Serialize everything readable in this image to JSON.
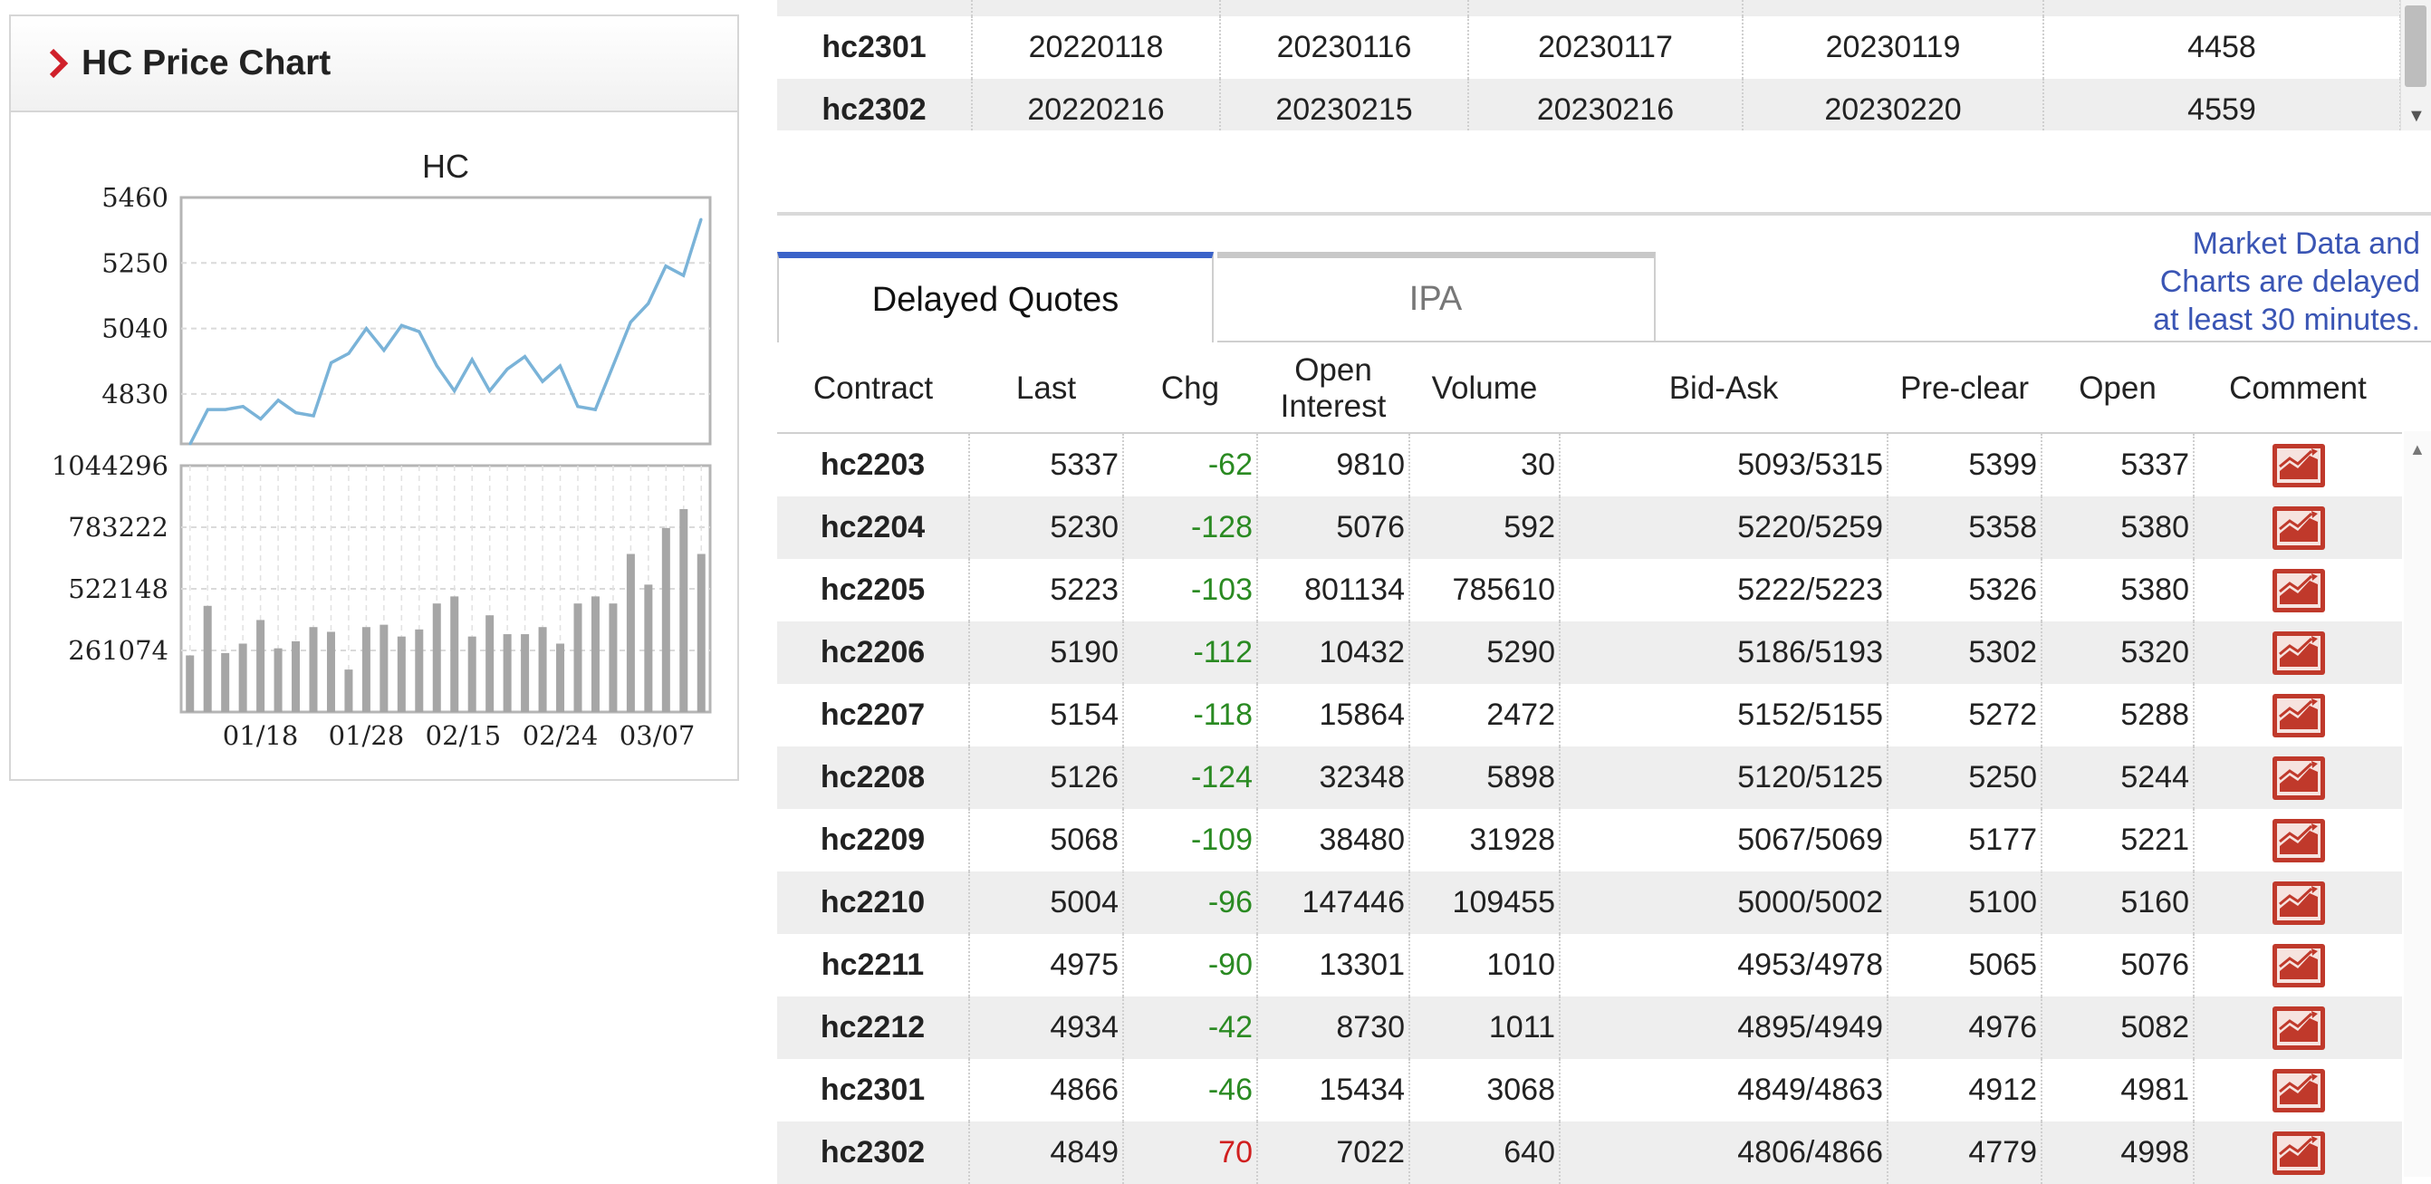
{
  "chart_panel": {
    "title": "HC Price Chart"
  },
  "chart_data": [
    {
      "type": "line",
      "title": "HC",
      "yticks": [
        "5460",
        "5250",
        "5040",
        "4830"
      ],
      "ylim": [
        4670,
        5460
      ],
      "grid": true,
      "values": [
        4670,
        4780,
        4780,
        4790,
        4750,
        4810,
        4770,
        4760,
        4930,
        4960,
        5040,
        4970,
        5050,
        5030,
        4920,
        4840,
        4940,
        4840,
        4910,
        4950,
        4870,
        4920,
        4790,
        4780,
        4920,
        5060,
        5120,
        5240,
        5210,
        5390
      ]
    },
    {
      "type": "bar",
      "yticks": [
        "1044296",
        "783222",
        "522148",
        "261074"
      ],
      "ylim": [
        0,
        1044296
      ],
      "xticks": [
        "01/18",
        "01/28",
        "02/15",
        "02/24",
        "03/07"
      ],
      "grid": true,
      "values": [
        240000,
        450000,
        250000,
        290000,
        390000,
        270000,
        300000,
        360000,
        340000,
        180000,
        360000,
        370000,
        320000,
        350000,
        460000,
        490000,
        320000,
        410000,
        330000,
        330000,
        360000,
        290000,
        460000,
        490000,
        460000,
        670000,
        540000,
        780000,
        860000,
        670000
      ]
    }
  ],
  "upper_table": {
    "rows": [
      {
        "contract": "hc2301",
        "c1": "20220118",
        "c2": "20230116",
        "c3": "20230117",
        "c4": "20230119",
        "c5": "4458"
      },
      {
        "contract": "hc2302",
        "c1": "20220216",
        "c2": "20230215",
        "c3": "20230216",
        "c4": "20230220",
        "c5": "4559"
      }
    ]
  },
  "tabs": {
    "delayed": "Delayed Quotes",
    "ipa": "IPA"
  },
  "notice": {
    "line1": "Market Data and",
    "line2": "Charts are delayed",
    "line3": "at least 30 minutes."
  },
  "quotes": {
    "headers": {
      "contract": "Contract",
      "last": "Last",
      "chg": "Chg",
      "oi_1": "Open",
      "oi_2": "Interest",
      "volume": "Volume",
      "bidask": "Bid-Ask",
      "preclear": "Pre-clear",
      "open": "Open",
      "comment": "Comment"
    },
    "rows": [
      {
        "contract": "hc2203",
        "last": "5337",
        "chg": "-62",
        "oi": "9810",
        "volume": "30",
        "bidask": "5093/5315",
        "preclear": "5399",
        "open": "5337"
      },
      {
        "contract": "hc2204",
        "last": "5230",
        "chg": "-128",
        "oi": "5076",
        "volume": "592",
        "bidask": "5220/5259",
        "preclear": "5358",
        "open": "5380"
      },
      {
        "contract": "hc2205",
        "last": "5223",
        "chg": "-103",
        "oi": "801134",
        "volume": "785610",
        "bidask": "5222/5223",
        "preclear": "5326",
        "open": "5380"
      },
      {
        "contract": "hc2206",
        "last": "5190",
        "chg": "-112",
        "oi": "10432",
        "volume": "5290",
        "bidask": "5186/5193",
        "preclear": "5302",
        "open": "5320"
      },
      {
        "contract": "hc2207",
        "last": "5154",
        "chg": "-118",
        "oi": "15864",
        "volume": "2472",
        "bidask": "5152/5155",
        "preclear": "5272",
        "open": "5288"
      },
      {
        "contract": "hc2208",
        "last": "5126",
        "chg": "-124",
        "oi": "32348",
        "volume": "5898",
        "bidask": "5120/5125",
        "preclear": "5250",
        "open": "5244"
      },
      {
        "contract": "hc2209",
        "last": "5068",
        "chg": "-109",
        "oi": "38480",
        "volume": "31928",
        "bidask": "5067/5069",
        "preclear": "5177",
        "open": "5221"
      },
      {
        "contract": "hc2210",
        "last": "5004",
        "chg": "-96",
        "oi": "147446",
        "volume": "109455",
        "bidask": "5000/5002",
        "preclear": "5100",
        "open": "5160"
      },
      {
        "contract": "hc2211",
        "last": "4975",
        "chg": "-90",
        "oi": "13301",
        "volume": "1010",
        "bidask": "4953/4978",
        "preclear": "5065",
        "open": "5076"
      },
      {
        "contract": "hc2212",
        "last": "4934",
        "chg": "-42",
        "oi": "8730",
        "volume": "1011",
        "bidask": "4895/4949",
        "preclear": "4976",
        "open": "5082"
      },
      {
        "contract": "hc2301",
        "last": "4866",
        "chg": "-46",
        "oi": "15434",
        "volume": "3068",
        "bidask": "4849/4863",
        "preclear": "4912",
        "open": "4981"
      },
      {
        "contract": "hc2302",
        "last": "4849",
        "chg": "70",
        "oi": "7022",
        "volume": "640",
        "bidask": "4806/4866",
        "preclear": "4779",
        "open": "4998"
      }
    ]
  },
  "colors": {
    "line": "#7ab3d8",
    "bar": "#a6a6a6",
    "negative": "#2a8a22",
    "positive": "#d01f1f",
    "accent": "#3b63c9",
    "chart_icon": "#c0392b"
  }
}
